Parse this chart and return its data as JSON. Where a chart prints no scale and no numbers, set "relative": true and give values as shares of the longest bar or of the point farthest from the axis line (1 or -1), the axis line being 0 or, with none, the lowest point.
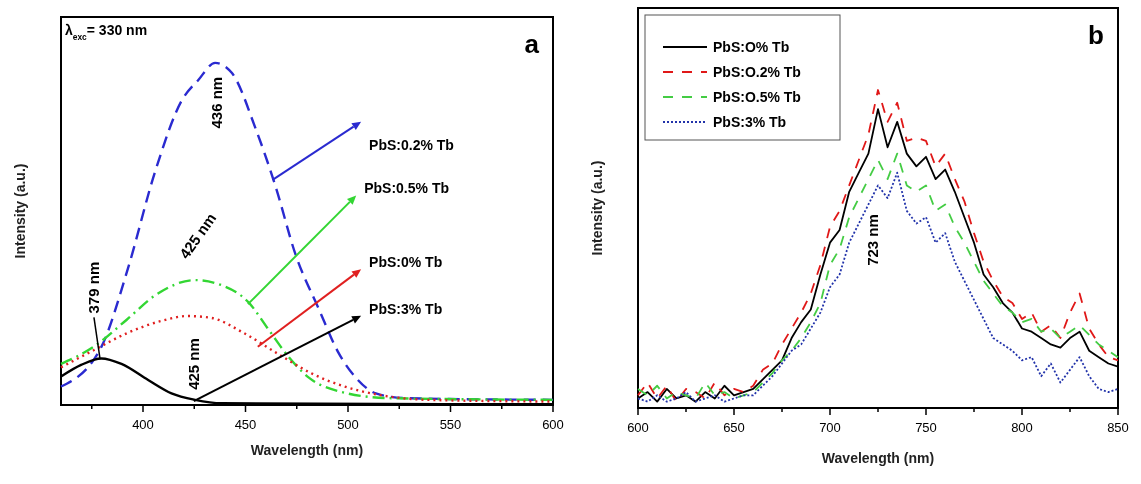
{
  "chart_data": [
    {
      "type": "line",
      "xlabel": "Wavelength (nm)",
      "ylabel": "Intensity (a.u.)",
      "relative": true,
      "legend": "right",
      "xlim": [
        360,
        600
      ],
      "xticks": [
        {
          "value": 375,
          "label": null
        },
        400,
        {
          "value": 425,
          "label": null
        },
        450,
        {
          "value": 475,
          "label": null
        },
        500,
        {
          "value": 525,
          "label": null
        },
        550,
        {
          "value": 575,
          "label": null
        },
        600
      ],
      "annotations": [
        "λ$_{exc}$= 330 nm",
        "a",
        {
          "text": "436 nm",
          "x": 436,
          "y": 1
        },
        {
          "text": "425 nm",
          "x": 425,
          "y": 0.365
        },
        {
          "text": "379 nm",
          "x": 379,
          "y": 0.136
        },
        {
          "text": "425 nm",
          "x": 425,
          "y": 0.015
        }
      ],
      "series": [
        {
          "name": "PbS:0.2% Tb",
          "color": "#2a2ad0",
          "line_style": "dashed",
          "x": [
            360,
            379.7,
            392.7,
            405.8,
            418.9,
            427,
            435.2,
            443.4,
            454.8,
            464.6,
            474.4,
            485.8,
            495.6,
            503.8,
            513.6,
            528.3,
            600
          ],
          "values": [
            0.054,
            0.17,
            0.4,
            0.68,
            0.89,
            0.95,
            1,
            0.97,
            0.81,
            0.64,
            0.44,
            0.28,
            0.15,
            0.08,
            0.034,
            0.02,
            0.015
          ]
        },
        {
          "name": "PbS:0.5% Tb",
          "color": "#33d633",
          "line_style": "dashdot",
          "x": [
            360,
            375.9,
            392.2,
            405.8,
            425.4,
            438.4,
            451.5,
            461.3,
            471.1,
            480.9,
            495.6,
            520.1,
            600
          ],
          "values": [
            0.12,
            0.17,
            0.25,
            0.32,
            0.365,
            0.35,
            0.3,
            0.22,
            0.14,
            0.08,
            0.04,
            0.02,
            0.015
          ]
        },
        {
          "name": "PbS:0% Tb",
          "color": "#e02020",
          "line_style": "dotted",
          "x": [
            360,
            375.9,
            392.2,
            408.5,
            421.6,
            433,
            449.3,
            465.7,
            482,
            498.3,
            514.7,
            539.2,
            600
          ],
          "values": [
            0.11,
            0.16,
            0.21,
            0.245,
            0.26,
            0.255,
            0.21,
            0.15,
            0.093,
            0.054,
            0.03,
            0.015,
            0.01
          ]
        },
        {
          "name": "PbS:3% Tb",
          "color": "#000000",
          "line_style": "solid",
          "x": [
            360,
            369.8,
            379.7,
            389.5,
            402.5,
            413.9,
            425.4,
            438.4,
            600
          ],
          "values": [
            0.083,
            0.117,
            0.136,
            0.12,
            0.073,
            0.034,
            0.015,
            0.005,
            0.002
          ]
        }
      ]
    },
    {
      "type": "line",
      "xlabel": "Wavelength (nm)",
      "ylabel": "Intensity (a.u.)",
      "relative": true,
      "legend": "top left",
      "xlim": [
        600,
        850
      ],
      "xticks": [
        600,
        {
          "value": 625,
          "label": null
        },
        650,
        {
          "value": 675,
          "label": null
        },
        700,
        {
          "value": 725,
          "label": null
        },
        750,
        {
          "value": 775,
          "label": null
        },
        800,
        {
          "value": 825,
          "label": null
        },
        850
      ],
      "x": [
        600,
        605,
        610,
        615,
        620,
        625,
        630,
        635,
        640,
        645,
        650,
        655,
        660,
        665,
        670,
        675,
        680,
        685,
        690,
        695,
        700,
        705,
        710,
        715,
        720,
        725,
        730,
        735,
        740,
        745,
        750,
        755,
        760,
        765,
        770,
        775,
        780,
        785,
        790,
        795,
        800,
        805,
        810,
        815,
        820,
        825,
        830,
        835,
        840,
        845,
        850
      ],
      "annotations": [
        "b",
        "723 nm"
      ],
      "series": [
        {
          "name": "PbS:O% Tb",
          "color": "#000000",
          "line_style": "solid",
          "values": [
            0.03,
            0.05,
            0.02,
            0.06,
            0.03,
            0.04,
            0.02,
            0.05,
            0.03,
            0.07,
            0.04,
            0.05,
            0.06,
            0.09,
            0.12,
            0.15,
            0.22,
            0.27,
            0.31,
            0.42,
            0.52,
            0.56,
            0.68,
            0.74,
            0.8,
            0.94,
            0.82,
            0.9,
            0.8,
            0.76,
            0.79,
            0.72,
            0.75,
            0.68,
            0.6,
            0.52,
            0.42,
            0.38,
            0.33,
            0.3,
            0.25,
            0.24,
            0.22,
            0.2,
            0.19,
            0.22,
            0.24,
            0.18,
            0.16,
            0.14,
            0.13
          ]
        },
        {
          "name": "PbS:O.2% Tb",
          "color": "#e01818",
          "line_style": "dashed",
          "values": [
            0.04,
            0.08,
            0.03,
            0.07,
            0.02,
            0.06,
            0.05,
            0.03,
            0.08,
            0.04,
            0.06,
            0.05,
            0.07,
            0.12,
            0.14,
            0.2,
            0.25,
            0.3,
            0.36,
            0.45,
            0.57,
            0.62,
            0.7,
            0.78,
            0.86,
            1,
            0.9,
            0.96,
            0.84,
            0.85,
            0.84,
            0.76,
            0.8,
            0.72,
            0.65,
            0.55,
            0.46,
            0.4,
            0.35,
            0.33,
            0.28,
            0.3,
            0.24,
            0.26,
            0.22,
            0.3,
            0.36,
            0.25,
            0.2,
            0.16,
            0.15
          ]
        },
        {
          "name": "PbS:O.5% Tb",
          "color": "#44cc44",
          "line_style": "dashed",
          "values": [
            0.06,
            0.04,
            0.07,
            0.03,
            0.05,
            0.04,
            0.03,
            0.08,
            0.04,
            0.05,
            0.03,
            0.04,
            0.05,
            0.08,
            0.11,
            0.15,
            0.18,
            0.22,
            0.27,
            0.33,
            0.45,
            0.5,
            0.6,
            0.66,
            0.72,
            0.78,
            0.72,
            0.8,
            0.7,
            0.68,
            0.7,
            0.62,
            0.64,
            0.57,
            0.52,
            0.46,
            0.4,
            0.36,
            0.32,
            0.3,
            0.27,
            0.28,
            0.24,
            0.25,
            0.22,
            0.24,
            0.26,
            0.23,
            0.2,
            0.18,
            0.16
          ]
        },
        {
          "name": "PbS:3% Tb",
          "color": "#2233aa",
          "line_style": "dotted",
          "values": [
            0.03,
            0.02,
            0.04,
            0.02,
            0.03,
            0.05,
            0.02,
            0.03,
            0.04,
            0.02,
            0.03,
            0.04,
            0.04,
            0.07,
            0.1,
            0.14,
            0.18,
            0.2,
            0.25,
            0.3,
            0.38,
            0.42,
            0.52,
            0.58,
            0.64,
            0.7,
            0.66,
            0.74,
            0.62,
            0.58,
            0.6,
            0.52,
            0.55,
            0.46,
            0.4,
            0.34,
            0.28,
            0.22,
            0.2,
            0.18,
            0.15,
            0.16,
            0.1,
            0.14,
            0.08,
            0.12,
            0.16,
            0.1,
            0.06,
            0.05,
            0.06
          ]
        }
      ]
    }
  ]
}
